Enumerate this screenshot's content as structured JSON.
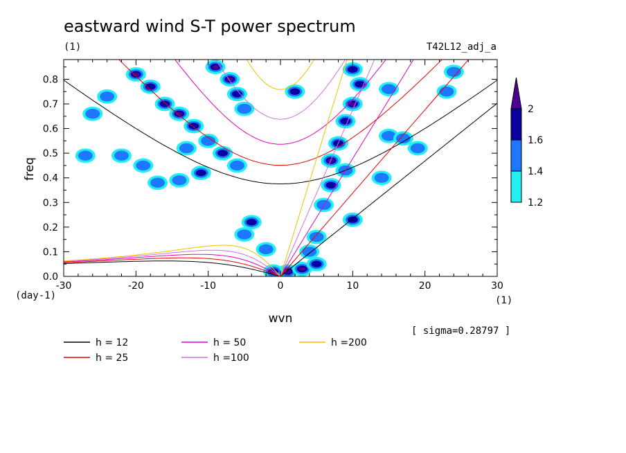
{
  "chart_data": {
    "type": "contour",
    "title": "eastward wind S-T power spectrum",
    "title_units": "(1)",
    "run_label": "T42L12_adj_a",
    "xlabel": "wvn",
    "x_units": "(1)",
    "ylabel": "freq",
    "y_units": "(day-1)",
    "xlim": [
      -30,
      30
    ],
    "ylim": [
      0,
      0.88
    ],
    "x_ticks": [
      -30,
      -20,
      -10,
      0,
      10,
      20,
      30
    ],
    "x_tick_labels": [
      "-30",
      "-20",
      "-10",
      "0",
      "10",
      "20",
      "30"
    ],
    "y_ticks": [
      0,
      0.1,
      0.2,
      0.3,
      0.4,
      0.5,
      0.6,
      0.7,
      0.8
    ],
    "y_tick_labels": [
      "0.0",
      "0.1",
      "0.2",
      "0.3",
      "0.4",
      "0.5",
      "0.6",
      "0.7",
      "0.8"
    ],
    "note": "[ sigma=0.28797 ]",
    "colorbar": {
      "levels": [
        1.2,
        1.4,
        1.6,
        2
      ],
      "labels": [
        "1.2",
        "1.4",
        "1.6",
        "2"
      ],
      "colors": [
        "#22f0f0",
        "#1e78ff",
        "#0a00a0",
        "#4a0090"
      ]
    },
    "series": [
      {
        "name": "h = 12",
        "h": 12,
        "color": "#000000"
      },
      {
        "name": "h = 25",
        "h": 25,
        "color": "#e00000"
      },
      {
        "name": "h = 50",
        "h": 50,
        "color": "#e000c0"
      },
      {
        "name": "h =100",
        "h": 100,
        "color": "#d070e0"
      },
      {
        "name": "h =200",
        "h": 200,
        "color": "#f0c000"
      }
    ],
    "blobs": [
      {
        "x": -20,
        "y": 0.82,
        "level": 3
      },
      {
        "x": -18,
        "y": 0.77,
        "level": 2
      },
      {
        "x": -16,
        "y": 0.7,
        "level": 2
      },
      {
        "x": -14,
        "y": 0.66,
        "level": 3
      },
      {
        "x": -12,
        "y": 0.61,
        "level": 2
      },
      {
        "x": -10,
        "y": 0.55,
        "level": 1
      },
      {
        "x": -8,
        "y": 0.5,
        "level": 2
      },
      {
        "x": -13,
        "y": 0.52,
        "level": 1
      },
      {
        "x": -6,
        "y": 0.45,
        "level": 1
      },
      {
        "x": -11,
        "y": 0.42,
        "level": 2
      },
      {
        "x": -9,
        "y": 0.85,
        "level": 3
      },
      {
        "x": -7,
        "y": 0.8,
        "level": 3
      },
      {
        "x": -6,
        "y": 0.74,
        "level": 2
      },
      {
        "x": -5,
        "y": 0.68,
        "level": 1
      },
      {
        "x": -24,
        "y": 0.73,
        "level": 1
      },
      {
        "x": -26,
        "y": 0.66,
        "level": 1
      },
      {
        "x": -27,
        "y": 0.49,
        "level": 1
      },
      {
        "x": -22,
        "y": 0.49,
        "level": 1
      },
      {
        "x": -19,
        "y": 0.45,
        "level": 1
      },
      {
        "x": -17,
        "y": 0.38,
        "level": 1
      },
      {
        "x": -14,
        "y": 0.39,
        "level": 1
      },
      {
        "x": 1,
        "y": 0.02,
        "level": 3
      },
      {
        "x": 3,
        "y": 0.03,
        "level": 3
      },
      {
        "x": -1,
        "y": 0.02,
        "level": 2
      },
      {
        "x": 5,
        "y": 0.05,
        "level": 2
      },
      {
        "x": -4,
        "y": 0.22,
        "level": 2
      },
      {
        "x": -5,
        "y": 0.17,
        "level": 1
      },
      {
        "x": 7,
        "y": 0.47,
        "level": 3
      },
      {
        "x": 8,
        "y": 0.54,
        "level": 2
      },
      {
        "x": 9,
        "y": 0.63,
        "level": 2
      },
      {
        "x": 10,
        "y": 0.7,
        "level": 3
      },
      {
        "x": 11,
        "y": 0.78,
        "level": 2
      },
      {
        "x": 7,
        "y": 0.37,
        "level": 2
      },
      {
        "x": 6,
        "y": 0.29,
        "level": 1
      },
      {
        "x": 9,
        "y": 0.43,
        "level": 1
      },
      {
        "x": 10,
        "y": 0.84,
        "level": 2
      },
      {
        "x": 15,
        "y": 0.57,
        "level": 1
      },
      {
        "x": 14,
        "y": 0.4,
        "level": 1
      },
      {
        "x": 17,
        "y": 0.56,
        "level": 1
      },
      {
        "x": 19,
        "y": 0.52,
        "level": 1
      },
      {
        "x": 24,
        "y": 0.83,
        "level": 1
      },
      {
        "x": 23,
        "y": 0.75,
        "level": 1
      },
      {
        "x": 10,
        "y": 0.23,
        "level": 2
      },
      {
        "x": 5,
        "y": 0.16,
        "level": 1
      },
      {
        "x": 2,
        "y": 0.75,
        "level": 2
      },
      {
        "x": 15,
        "y": 0.76,
        "level": 1
      },
      {
        "x": 4,
        "y": 0.1,
        "level": 1
      },
      {
        "x": -2,
        "y": 0.11,
        "level": 1
      }
    ]
  }
}
